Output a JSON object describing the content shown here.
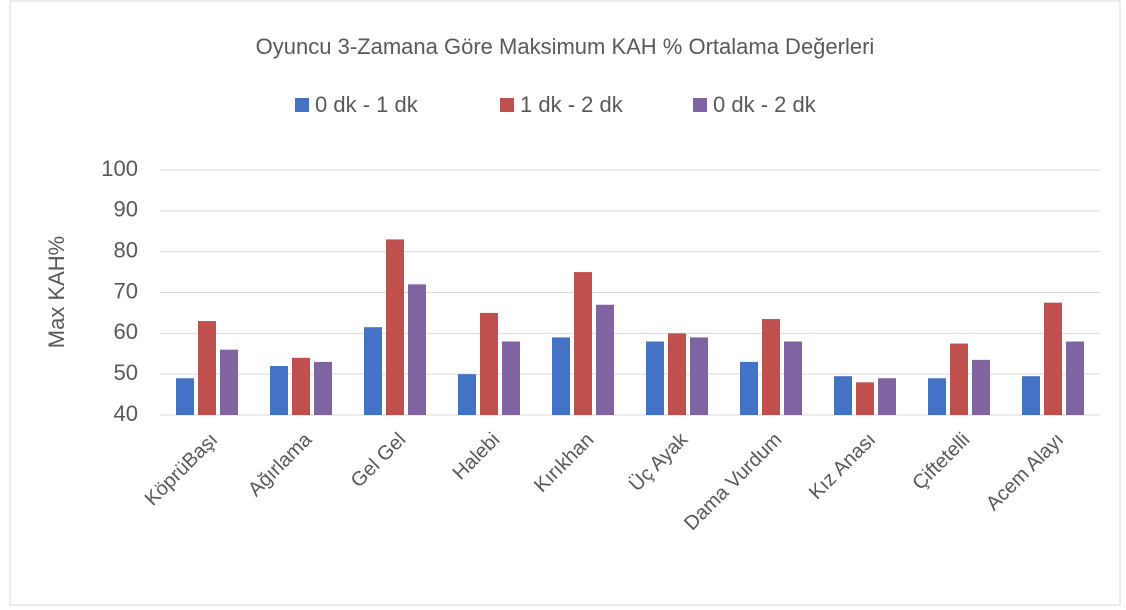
{
  "chart_data": {
    "type": "bar",
    "title": "Oyuncu 3-Zamana Göre Maksimum KAH % Ortalama Değerleri",
    "ylabel": "Max KAH%",
    "categories": [
      "KöprüBaşı",
      "Ağırlama",
      "Gel Gel",
      "Halebi",
      "Kırıkhan",
      "Üç Ayak",
      "Dama Vurdum",
      "Kız Anası",
      "Çiftetelli",
      "Acem Alayı"
    ],
    "series": [
      {
        "name": "0 dk - 1 dk",
        "color": "#4472c4",
        "values": [
          49,
          52,
          61.5,
          50,
          59,
          58,
          53,
          49.5,
          49,
          49.5
        ]
      },
      {
        "name": "1 dk - 2 dk",
        "color": "#c0504d",
        "values": [
          63,
          54,
          83,
          65,
          75,
          60,
          63.5,
          48,
          57.5,
          67.5
        ]
      },
      {
        "name": "0 dk - 2 dk",
        "color": "#8064a2",
        "values": [
          56,
          53,
          72,
          58,
          67,
          59,
          58,
          49,
          53.5,
          58
        ]
      }
    ],
    "ylim": [
      40,
      100
    ],
    "yticks": [
      40,
      50,
      60,
      70,
      80,
      90,
      100
    ],
    "grid": true,
    "legend": "top"
  }
}
